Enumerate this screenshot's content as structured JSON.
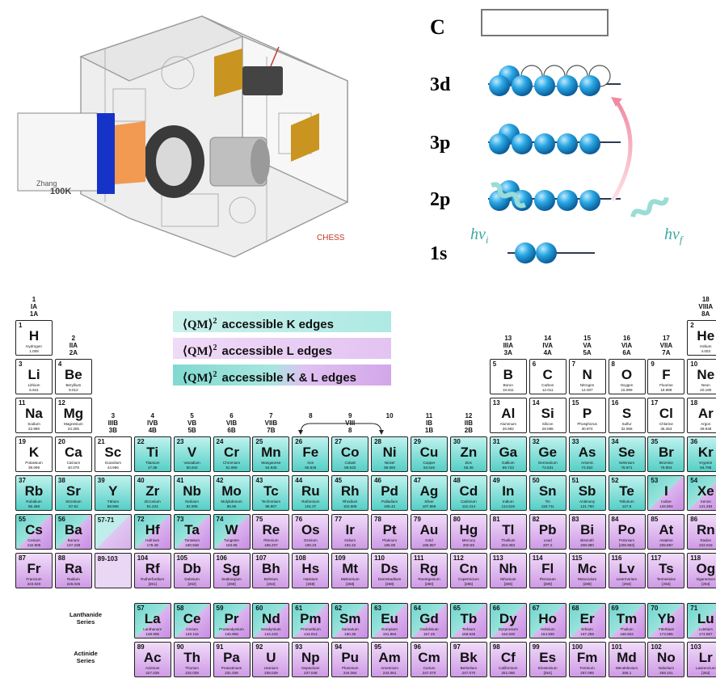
{
  "instrument": {
    "label": "CHESS",
    "block_label_1": "Zhang",
    "block_label_2": "100K"
  },
  "orbital_diagram": {
    "c_label": "C",
    "levels": [
      {
        "label": "3d",
        "filled": 6,
        "empty": 4
      },
      {
        "label": "3p",
        "filled": 6,
        "empty": 0
      },
      {
        "label": "2p",
        "filled": 6,
        "empty": 0
      },
      {
        "label": "1s",
        "filled": 2,
        "empty": 0
      }
    ],
    "photon_in": "hν",
    "photon_in_sub": "i",
    "photon_out": "hν",
    "photon_out_sub": "f"
  },
  "legend": [
    {
      "text": "accessible K edges",
      "prefix": "⟨QM⟩",
      "sup": "2",
      "type": "K"
    },
    {
      "text": "accessible L edges",
      "prefix": "⟨QM⟩",
      "sup": "2",
      "type": "L"
    },
    {
      "text": "accessible K & L edges",
      "prefix": "⟨QM⟩",
      "sup": "2",
      "type": "KL"
    }
  ],
  "group_labels": [
    {
      "col": 1,
      "row": 1,
      "text": "1\nIA\n1A"
    },
    {
      "col": 18,
      "row": 1,
      "text": "18\nVIIIA\n8A"
    },
    {
      "col": 2,
      "row": 2,
      "text": "2\nIIA\n2A"
    },
    {
      "col": 13,
      "row": 2,
      "text": "13\nIIIA\n3A"
    },
    {
      "col": 14,
      "row": 2,
      "text": "14\nIVA\n4A"
    },
    {
      "col": 15,
      "row": 2,
      "text": "15\nVA\n5A"
    },
    {
      "col": 16,
      "row": 2,
      "text": "16\nVIA\n6A"
    },
    {
      "col": 17,
      "row": 2,
      "text": "17\nVIIA\n7A"
    },
    {
      "col": 3,
      "row": 4,
      "text": "3\nIIIB\n3B"
    },
    {
      "col": 4,
      "row": 4,
      "text": "4\nIVB\n4B"
    },
    {
      "col": 5,
      "row": 4,
      "text": "5\nVB\n5B"
    },
    {
      "col": 6,
      "row": 4,
      "text": "6\nVIB\n6B"
    },
    {
      "col": 7,
      "row": 4,
      "text": "7\nVIIB\n7B"
    },
    {
      "col": 8,
      "row": 4,
      "text": "8"
    },
    {
      "col": 9,
      "row": 4,
      "text": "9\nVIII\n8"
    },
    {
      "col": 10,
      "row": 4,
      "text": "10"
    },
    {
      "col": 11,
      "row": 4,
      "text": "11\nIB\n1B"
    },
    {
      "col": 12,
      "row": 4,
      "text": "12\nIIB\n2B"
    }
  ],
  "elements": [
    {
      "n": "1",
      "s": "H",
      "name": "Hydrogen",
      "w": "1.008",
      "col": 1,
      "row": 1,
      "t": "none"
    },
    {
      "n": "2",
      "s": "He",
      "name": "Helium",
      "w": "4.003",
      "col": 18,
      "row": 1,
      "t": "none"
    },
    {
      "n": "3",
      "s": "Li",
      "name": "Lithium",
      "w": "6.941",
      "col": 1,
      "row": 2,
      "t": "none"
    },
    {
      "n": "4",
      "s": "Be",
      "name": "Beryllium",
      "w": "9.012",
      "col": 2,
      "row": 2,
      "t": "none"
    },
    {
      "n": "5",
      "s": "B",
      "name": "Boron",
      "w": "10.811",
      "col": 13,
      "row": 2,
      "t": "none"
    },
    {
      "n": "6",
      "s": "C",
      "name": "Carbon",
      "w": "12.011",
      "col": 14,
      "row": 2,
      "t": "none"
    },
    {
      "n": "7",
      "s": "N",
      "name": "Nitrogen",
      "w": "14.007",
      "col": 15,
      "row": 2,
      "t": "none"
    },
    {
      "n": "8",
      "s": "O",
      "name": "Oxygen",
      "w": "15.999",
      "col": 16,
      "row": 2,
      "t": "none"
    },
    {
      "n": "9",
      "s": "F",
      "name": "Fluorine",
      "w": "18.998",
      "col": 17,
      "row": 2,
      "t": "none"
    },
    {
      "n": "10",
      "s": "Ne",
      "name": "Neon",
      "w": "20.180",
      "col": 18,
      "row": 2,
      "t": "none"
    },
    {
      "n": "11",
      "s": "Na",
      "name": "Sodium",
      "w": "22.990",
      "col": 1,
      "row": 3,
      "t": "none"
    },
    {
      "n": "12",
      "s": "Mg",
      "name": "Magnesium",
      "w": "24.305",
      "col": 2,
      "row": 3,
      "t": "none"
    },
    {
      "n": "13",
      "s": "Al",
      "name": "Aluminum",
      "w": "26.982",
      "col": 13,
      "row": 3,
      "t": "none"
    },
    {
      "n": "14",
      "s": "Si",
      "name": "Silicon",
      "w": "28.086",
      "col": 14,
      "row": 3,
      "t": "none"
    },
    {
      "n": "15",
      "s": "P",
      "name": "Phosphorus",
      "w": "30.974",
      "col": 15,
      "row": 3,
      "t": "none"
    },
    {
      "n": "16",
      "s": "S",
      "name": "Sulfur",
      "w": "32.066",
      "col": 16,
      "row": 3,
      "t": "none"
    },
    {
      "n": "17",
      "s": "Cl",
      "name": "Chlorine",
      "w": "35.453",
      "col": 17,
      "row": 3,
      "t": "none"
    },
    {
      "n": "18",
      "s": "Ar",
      "name": "Argon",
      "w": "39.948",
      "col": 18,
      "row": 3,
      "t": "none"
    },
    {
      "n": "19",
      "s": "K",
      "name": "Potassium",
      "w": "39.098",
      "col": 1,
      "row": 4,
      "t": "none"
    },
    {
      "n": "20",
      "s": "Ca",
      "name": "Calcium",
      "w": "40.078",
      "col": 2,
      "row": 4,
      "t": "none"
    },
    {
      "n": "21",
      "s": "Sc",
      "name": "Scandium",
      "w": "44.956",
      "col": 3,
      "row": 4,
      "t": "none"
    },
    {
      "n": "22",
      "s": "Ti",
      "name": "Titanium",
      "w": "47.88",
      "col": 4,
      "row": 4,
      "t": "K"
    },
    {
      "n": "23",
      "s": "V",
      "name": "Vanadium",
      "w": "50.942",
      "col": 5,
      "row": 4,
      "t": "K"
    },
    {
      "n": "24",
      "s": "Cr",
      "name": "Chromium",
      "w": "51.996",
      "col": 6,
      "row": 4,
      "t": "K"
    },
    {
      "n": "25",
      "s": "Mn",
      "name": "Manganese",
      "w": "54.938",
      "col": 7,
      "row": 4,
      "t": "K"
    },
    {
      "n": "26",
      "s": "Fe",
      "name": "Iron",
      "w": "55.845",
      "col": 8,
      "row": 4,
      "t": "K"
    },
    {
      "n": "27",
      "s": "Co",
      "name": "Cobalt",
      "w": "58.933",
      "col": 9,
      "row": 4,
      "t": "K"
    },
    {
      "n": "28",
      "s": "Ni",
      "name": "Nickel",
      "w": "58.693",
      "col": 10,
      "row": 4,
      "t": "K"
    },
    {
      "n": "29",
      "s": "Cu",
      "name": "Copper",
      "w": "63.546",
      "col": 11,
      "row": 4,
      "t": "K"
    },
    {
      "n": "30",
      "s": "Zn",
      "name": "Zinc",
      "w": "65.38",
      "col": 12,
      "row": 4,
      "t": "K"
    },
    {
      "n": "31",
      "s": "Ga",
      "name": "Gallium",
      "w": "69.723",
      "col": 13,
      "row": 4,
      "t": "K"
    },
    {
      "n": "32",
      "s": "Ge",
      "name": "Germanium",
      "w": "72.631",
      "col": 14,
      "row": 4,
      "t": "K"
    },
    {
      "n": "33",
      "s": "As",
      "name": "Arsenic",
      "w": "74.922",
      "col": 15,
      "row": 4,
      "t": "K"
    },
    {
      "n": "34",
      "s": "Se",
      "name": "Selenium",
      "w": "78.971",
      "col": 16,
      "row": 4,
      "t": "K"
    },
    {
      "n": "35",
      "s": "Br",
      "name": "Bromine",
      "w": "79.904",
      "col": 17,
      "row": 4,
      "t": "K"
    },
    {
      "n": "36",
      "s": "Kr",
      "name": "Krypton",
      "w": "84.798",
      "col": 18,
      "row": 4,
      "t": "K"
    },
    {
      "n": "37",
      "s": "Rb",
      "name": "Rubidium",
      "w": "85.468",
      "col": 1,
      "row": 5,
      "t": "K"
    },
    {
      "n": "38",
      "s": "Sr",
      "name": "Strontium",
      "w": "87.62",
      "col": 2,
      "row": 5,
      "t": "K"
    },
    {
      "n": "39",
      "s": "Y",
      "name": "Yttrium",
      "w": "88.906",
      "col": 3,
      "row": 5,
      "t": "K"
    },
    {
      "n": "40",
      "s": "Zr",
      "name": "Zirconium",
      "w": "91.224",
      "col": 4,
      "row": 5,
      "t": "K"
    },
    {
      "n": "41",
      "s": "Nb",
      "name": "Niobium",
      "w": "92.906",
      "col": 5,
      "row": 5,
      "t": "K"
    },
    {
      "n": "42",
      "s": "Mo",
      "name": "Molybdenum",
      "w": "95.95",
      "col": 6,
      "row": 5,
      "t": "K"
    },
    {
      "n": "43",
      "s": "Tc",
      "name": "Technetium",
      "w": "98.907",
      "col": 7,
      "row": 5,
      "t": "K"
    },
    {
      "n": "44",
      "s": "Ru",
      "name": "Ruthenium",
      "w": "101.07",
      "col": 8,
      "row": 5,
      "t": "K"
    },
    {
      "n": "45",
      "s": "Rh",
      "name": "Rhodium",
      "w": "102.906",
      "col": 9,
      "row": 5,
      "t": "K"
    },
    {
      "n": "46",
      "s": "Pd",
      "name": "Palladium",
      "w": "106.42",
      "col": 10,
      "row": 5,
      "t": "K"
    },
    {
      "n": "47",
      "s": "Ag",
      "name": "Silver",
      "w": "107.868",
      "col": 11,
      "row": 5,
      "t": "K"
    },
    {
      "n": "48",
      "s": "Cd",
      "name": "Cadmium",
      "w": "112.414",
      "col": 12,
      "row": 5,
      "t": "K"
    },
    {
      "n": "49",
      "s": "In",
      "name": "Indium",
      "w": "114.818",
      "col": 13,
      "row": 5,
      "t": "K"
    },
    {
      "n": "50",
      "s": "Sn",
      "name": "Tin",
      "w": "118.711",
      "col": 14,
      "row": 5,
      "t": "K"
    },
    {
      "n": "51",
      "s": "Sb",
      "name": "Antimony",
      "w": "121.760",
      "col": 15,
      "row": 5,
      "t": "K"
    },
    {
      "n": "52",
      "s": "Te",
      "name": "Tellurium",
      "w": "127.6",
      "col": 16,
      "row": 5,
      "t": "K"
    },
    {
      "n": "53",
      "s": "I",
      "name": "Iodine",
      "w": "126.904",
      "col": 17,
      "row": 5,
      "t": "KL"
    },
    {
      "n": "54",
      "s": "Xe",
      "name": "Xenon",
      "w": "131.294",
      "col": 18,
      "row": 5,
      "t": "KL"
    },
    {
      "n": "55",
      "s": "Cs",
      "name": "Cesium",
      "w": "132.905",
      "col": 1,
      "row": 6,
      "t": "KL"
    },
    {
      "n": "56",
      "s": "Ba",
      "name": "Barium",
      "w": "137.328",
      "col": 2,
      "row": 6,
      "t": "KL"
    },
    {
      "n": "",
      "s": "",
      "name": "",
      "w": "",
      "col": 3,
      "row": 6,
      "t": "blankK",
      "range": "57-71"
    },
    {
      "n": "72",
      "s": "Hf",
      "name": "Hafnium",
      "w": "178.49",
      "col": 4,
      "row": 6,
      "t": "KL"
    },
    {
      "n": "73",
      "s": "Ta",
      "name": "Tantalum",
      "w": "180.948",
      "col": 5,
      "row": 6,
      "t": "KL"
    },
    {
      "n": "74",
      "s": "W",
      "name": "Tungsten",
      "w": "183.85",
      "col": 6,
      "row": 6,
      "t": "KL"
    },
    {
      "n": "75",
      "s": "Re",
      "name": "Rhenium",
      "w": "186.207",
      "col": 7,
      "row": 6,
      "t": "L"
    },
    {
      "n": "76",
      "s": "Os",
      "name": "Osmium",
      "w": "190.23",
      "col": 8,
      "row": 6,
      "t": "L"
    },
    {
      "n": "77",
      "s": "Ir",
      "name": "Iridium",
      "w": "192.22",
      "col": 9,
      "row": 6,
      "t": "L"
    },
    {
      "n": "78",
      "s": "Pt",
      "name": "Platinum",
      "w": "195.08",
      "col": 10,
      "row": 6,
      "t": "L"
    },
    {
      "n": "79",
      "s": "Au",
      "name": "Gold",
      "w": "196.967",
      "col": 11,
      "row": 6,
      "t": "L"
    },
    {
      "n": "80",
      "s": "Hg",
      "name": "Mercury",
      "w": "200.59",
      "col": 12,
      "row": 6,
      "t": "L"
    },
    {
      "n": "81",
      "s": "Tl",
      "name": "Thallium",
      "w": "204.383",
      "col": 13,
      "row": 6,
      "t": "L"
    },
    {
      "n": "82",
      "s": "Pb",
      "name": "Lead",
      "w": "207.2",
      "col": 14,
      "row": 6,
      "t": "L"
    },
    {
      "n": "83",
      "s": "Bi",
      "name": "Bismuth",
      "w": "208.980",
      "col": 15,
      "row": 6,
      "t": "L"
    },
    {
      "n": "84",
      "s": "Po",
      "name": "Polonium",
      "w": "[208.982]",
      "col": 16,
      "row": 6,
      "t": "L"
    },
    {
      "n": "85",
      "s": "At",
      "name": "Astatine",
      "w": "209.987",
      "col": 17,
      "row": 6,
      "t": "L"
    },
    {
      "n": "86",
      "s": "Rn",
      "name": "Radon",
      "w": "222.018",
      "col": 18,
      "row": 6,
      "t": "L"
    },
    {
      "n": "87",
      "s": "Fr",
      "name": "Francium",
      "w": "223.020",
      "col": 1,
      "row": 7,
      "t": "L"
    },
    {
      "n": "88",
      "s": "Ra",
      "name": "Radium",
      "w": "226.025",
      "col": 2,
      "row": 7,
      "t": "L"
    },
    {
      "n": "",
      "s": "",
      "name": "",
      "w": "",
      "col": 3,
      "row": 7,
      "t": "blankL",
      "range": "89-103"
    },
    {
      "n": "104",
      "s": "Rf",
      "name": "Rutherfordium",
      "w": "[261]",
      "col": 4,
      "row": 7,
      "t": "L"
    },
    {
      "n": "105",
      "s": "Db",
      "name": "Dubnium",
      "w": "[262]",
      "col": 5,
      "row": 7,
      "t": "L"
    },
    {
      "n": "106",
      "s": "Sg",
      "name": "Seaborgium",
      "w": "[266]",
      "col": 6,
      "row": 7,
      "t": "L"
    },
    {
      "n": "107",
      "s": "Bh",
      "name": "Bohrium",
      "w": "[264]",
      "col": 7,
      "row": 7,
      "t": "L"
    },
    {
      "n": "108",
      "s": "Hs",
      "name": "Hassium",
      "w": "[269]",
      "col": 8,
      "row": 7,
      "t": "L"
    },
    {
      "n": "109",
      "s": "Mt",
      "name": "Meitnerium",
      "w": "[268]",
      "col": 9,
      "row": 7,
      "t": "L"
    },
    {
      "n": "110",
      "s": "Ds",
      "name": "Darmstadtium",
      "w": "[269]",
      "col": 10,
      "row": 7,
      "t": "L"
    },
    {
      "n": "111",
      "s": "Rg",
      "name": "Roentgenium",
      "w": "[280]",
      "col": 11,
      "row": 7,
      "t": "L"
    },
    {
      "n": "112",
      "s": "Cn",
      "name": "Copernicium",
      "w": "[285]",
      "col": 12,
      "row": 7,
      "t": "L"
    },
    {
      "n": "113",
      "s": "Nh",
      "name": "Nihonium",
      "w": "[286]",
      "col": 13,
      "row": 7,
      "t": "L"
    },
    {
      "n": "114",
      "s": "Fl",
      "name": "Flerovium",
      "w": "[289]",
      "col": 14,
      "row": 7,
      "t": "L"
    },
    {
      "n": "115",
      "s": "Mc",
      "name": "Moscovium",
      "w": "[289]",
      "col": 15,
      "row": 7,
      "t": "L"
    },
    {
      "n": "116",
      "s": "Lv",
      "name": "Livermorium",
      "w": "[293]",
      "col": 16,
      "row": 7,
      "t": "L"
    },
    {
      "n": "117",
      "s": "Ts",
      "name": "Tennessine",
      "w": "[294]",
      "col": 17,
      "row": 7,
      "t": "L"
    },
    {
      "n": "118",
      "s": "Og",
      "name": "Oganesson",
      "w": "[294]",
      "col": 18,
      "row": 7,
      "t": "L"
    },
    {
      "n": "57",
      "s": "La",
      "name": "Lanthanum",
      "w": "138.906",
      "col": 4,
      "row": 8,
      "t": "KL"
    },
    {
      "n": "58",
      "s": "Ce",
      "name": "Cerium",
      "w": "140.116",
      "col": 5,
      "row": 8,
      "t": "KL"
    },
    {
      "n": "59",
      "s": "Pr",
      "name": "Praseodymium",
      "w": "140.908",
      "col": 6,
      "row": 8,
      "t": "KL"
    },
    {
      "n": "60",
      "s": "Nd",
      "name": "Neodymium",
      "w": "144.243",
      "col": 7,
      "row": 8,
      "t": "KL"
    },
    {
      "n": "61",
      "s": "Pm",
      "name": "Promethium",
      "w": "144.913",
      "col": 8,
      "row": 8,
      "t": "KL"
    },
    {
      "n": "62",
      "s": "Sm",
      "name": "Samarium",
      "w": "150.36",
      "col": 9,
      "row": 8,
      "t": "KL"
    },
    {
      "n": "63",
      "s": "Eu",
      "name": "Europium",
      "w": "151.964",
      "col": 10,
      "row": 8,
      "t": "KL"
    },
    {
      "n": "64",
      "s": "Gd",
      "name": "Gadolinium",
      "w": "157.25",
      "col": 11,
      "row": 8,
      "t": "KL"
    },
    {
      "n": "65",
      "s": "Tb",
      "name": "Terbium",
      "w": "158.925",
      "col": 12,
      "row": 8,
      "t": "KL"
    },
    {
      "n": "66",
      "s": "Dy",
      "name": "Dysprosium",
      "w": "162.500",
      "col": 13,
      "row": 8,
      "t": "KL"
    },
    {
      "n": "67",
      "s": "Ho",
      "name": "Holmium",
      "w": "164.930",
      "col": 14,
      "row": 8,
      "t": "KL"
    },
    {
      "n": "68",
      "s": "Er",
      "name": "Erbium",
      "w": "167.259",
      "col": 15,
      "row": 8,
      "t": "KL"
    },
    {
      "n": "69",
      "s": "Tm",
      "name": "Thulium",
      "w": "168.934",
      "col": 16,
      "row": 8,
      "t": "KL"
    },
    {
      "n": "70",
      "s": "Yb",
      "name": "Ytterbium",
      "w": "173.055",
      "col": 17,
      "row": 8,
      "t": "KL"
    },
    {
      "n": "71",
      "s": "Lu",
      "name": "Lutetium",
      "w": "174.967",
      "col": 18,
      "row": 8,
      "t": "KL"
    },
    {
      "n": "89",
      "s": "Ac",
      "name": "Actinium",
      "w": "227.028",
      "col": 4,
      "row": 9,
      "t": "L"
    },
    {
      "n": "90",
      "s": "Th",
      "name": "Thorium",
      "w": "232.038",
      "col": 5,
      "row": 9,
      "t": "L"
    },
    {
      "n": "91",
      "s": "Pa",
      "name": "Protactinium",
      "w": "231.036",
      "col": 6,
      "row": 9,
      "t": "L"
    },
    {
      "n": "92",
      "s": "U",
      "name": "Uranium",
      "w": "238.029",
      "col": 7,
      "row": 9,
      "t": "L"
    },
    {
      "n": "93",
      "s": "Np",
      "name": "Neptunium",
      "w": "237.048",
      "col": 8,
      "row": 9,
      "t": "L"
    },
    {
      "n": "94",
      "s": "Pu",
      "name": "Plutonium",
      "w": "244.064",
      "col": 9,
      "row": 9,
      "t": "L"
    },
    {
      "n": "95",
      "s": "Am",
      "name": "Americium",
      "w": "243.061",
      "col": 10,
      "row": 9,
      "t": "L"
    },
    {
      "n": "96",
      "s": "Cm",
      "name": "Curium",
      "w": "247.070",
      "col": 11,
      "row": 9,
      "t": "L"
    },
    {
      "n": "97",
      "s": "Bk",
      "name": "Berkelium",
      "w": "247.070",
      "col": 12,
      "row": 9,
      "t": "L"
    },
    {
      "n": "98",
      "s": "Cf",
      "name": "Californium",
      "w": "251.080",
      "col": 13,
      "row": 9,
      "t": "L"
    },
    {
      "n": "99",
      "s": "Es",
      "name": "Einsteinium",
      "w": "[254]",
      "col": 14,
      "row": 9,
      "t": "L"
    },
    {
      "n": "100",
      "s": "Fm",
      "name": "Fermium",
      "w": "257.095",
      "col": 15,
      "row": 9,
      "t": "L"
    },
    {
      "n": "101",
      "s": "Md",
      "name": "Mendelevium",
      "w": "258.1",
      "col": 16,
      "row": 9,
      "t": "L"
    },
    {
      "n": "102",
      "s": "No",
      "name": "Nobelium",
      "w": "259.101",
      "col": 17,
      "row": 9,
      "t": "L"
    },
    {
      "n": "103",
      "s": "Lr",
      "name": "Lawrencium",
      "w": "[262]",
      "col": 18,
      "row": 9,
      "t": "L"
    }
  ],
  "series_labels": {
    "lanthanide": "Lanthanide\nSeries",
    "actinide": "Actinide\nSeries"
  },
  "colors": {
    "K": "#55cfc6",
    "L": "#cf9ae6",
    "electron": "#1e9ad6",
    "arrow": "#f4a7b5",
    "photon": "#4ec7be"
  }
}
